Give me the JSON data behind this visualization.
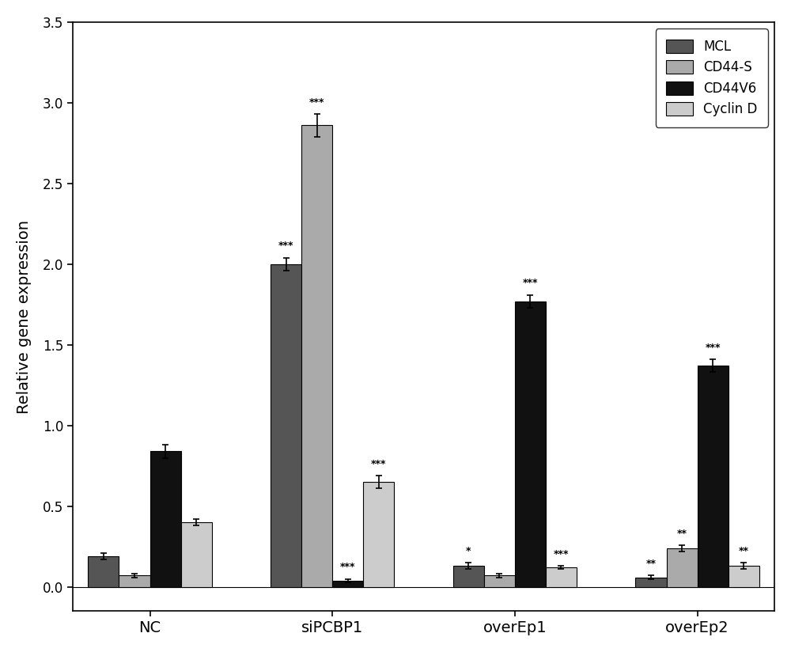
{
  "groups": [
    "NC",
    "siPCBP1",
    "overEp1",
    "overEp2"
  ],
  "series": [
    "MCL",
    "CD44-S",
    "CD44V6",
    "Cyclin D"
  ],
  "colors": [
    "#555555",
    "#aaaaaa",
    "#111111",
    "#cccccc"
  ],
  "bar_values": [
    [
      0.19,
      0.07,
      0.84,
      0.4
    ],
    [
      2.0,
      2.86,
      0.04,
      0.65
    ],
    [
      0.13,
      0.07,
      1.77,
      0.12
    ],
    [
      0.06,
      0.24,
      1.37,
      0.13
    ]
  ],
  "error_values": [
    [
      0.02,
      0.01,
      0.04,
      0.02
    ],
    [
      0.04,
      0.07,
      0.01,
      0.04
    ],
    [
      0.02,
      0.01,
      0.04,
      0.01
    ],
    [
      0.01,
      0.02,
      0.04,
      0.02
    ]
  ],
  "significance": [
    [
      "",
      "",
      "",
      ""
    ],
    [
      "***",
      "***",
      "***",
      "***"
    ],
    [
      "*",
      "",
      "***",
      "***"
    ],
    [
      "**",
      "**",
      "***",
      "**"
    ]
  ],
  "ylabel": "Relative gene expression",
  "ylim": [
    -0.15,
    3.5
  ],
  "yticks": [
    0.0,
    0.5,
    1.0,
    1.5,
    2.0,
    2.5,
    3.0,
    3.5
  ],
  "fig_width": 10.0,
  "fig_height": 8.24,
  "background_color": "#ffffff",
  "group_centers": [
    0.55,
    1.85,
    3.15,
    4.45
  ],
  "bar_width": 0.22
}
